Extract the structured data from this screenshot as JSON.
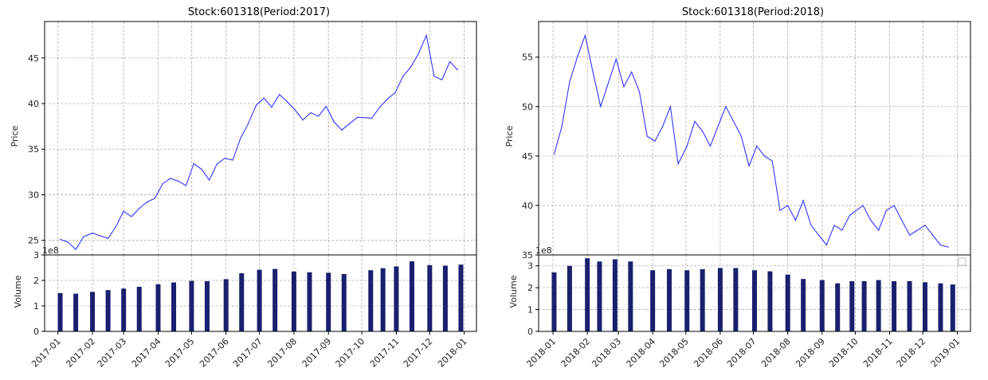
{
  "chart_data": [
    {
      "type": "line",
      "title": "Stock:601318(Period:2017)",
      "ylabel": "Price",
      "ylim": [
        23.4,
        49.0
      ],
      "yticks": [
        25,
        30,
        35,
        40,
        45
      ],
      "xlim": [
        "2016-12-20",
        "2018-01-12"
      ],
      "grid": true,
      "series": [
        {
          "color": "#3333ff",
          "x": [
            "2017-01-03",
            "2017-01-10",
            "2017-01-17",
            "2017-01-24",
            "2017-02-01",
            "2017-02-08",
            "2017-02-15",
            "2017-02-22",
            "2017-03-01",
            "2017-03-08",
            "2017-03-15",
            "2017-03-22",
            "2017-03-29",
            "2017-04-05",
            "2017-04-12",
            "2017-04-19",
            "2017-04-26",
            "2017-05-03",
            "2017-05-10",
            "2017-05-17",
            "2017-05-24",
            "2017-05-31",
            "2017-06-07",
            "2017-06-14",
            "2017-06-21",
            "2017-06-28",
            "2017-07-05",
            "2017-07-12",
            "2017-07-19",
            "2017-07-26",
            "2017-08-02",
            "2017-08-09",
            "2017-08-16",
            "2017-08-23",
            "2017-08-30",
            "2017-09-06",
            "2017-09-13",
            "2017-09-20",
            "2017-09-27",
            "2017-10-10",
            "2017-10-17",
            "2017-10-24",
            "2017-10-31",
            "2017-11-07",
            "2017-11-14",
            "2017-11-21",
            "2017-11-28",
            "2017-12-05",
            "2017-12-12",
            "2017-12-19",
            "2017-12-26"
          ],
          "values": [
            25.1,
            24.8,
            24.0,
            25.4,
            25.8,
            25.5,
            25.2,
            26.5,
            28.2,
            27.6,
            28.5,
            29.2,
            29.6,
            31.2,
            31.8,
            31.5,
            31.0,
            33.4,
            32.8,
            31.6,
            33.4,
            34.0,
            33.8,
            36.2,
            37.8,
            39.8,
            40.6,
            39.6,
            41.0,
            40.2,
            39.3,
            38.2,
            39.0,
            38.6,
            39.7,
            38.0,
            37.1,
            37.8,
            38.5,
            38.4,
            39.6,
            40.5,
            41.2,
            43.0,
            44.0,
            45.5,
            47.5,
            43.0,
            42.6,
            44.6,
            43.7
          ]
        }
      ]
    },
    {
      "type": "bar",
      "ylabel": "Volume",
      "y_offset_label": "1e8",
      "ylim": [
        0,
        3
      ],
      "yticks": [
        0,
        1,
        2,
        3
      ],
      "xlim": [
        "2016-12-20",
        "2018-01-12"
      ],
      "xticks": [
        "2017-01",
        "2017-02",
        "2017-03",
        "2017-04",
        "2017-05",
        "2017-06",
        "2017-07",
        "2017-08",
        "2017-09",
        "2017-10",
        "2017-11",
        "2017-12",
        "2018-01"
      ],
      "bar_color": "#1a1f6e",
      "grid": true,
      "series": [
        {
          "x": [
            "2017-01-03",
            "2017-01-17",
            "2017-02-01",
            "2017-02-15",
            "2017-03-01",
            "2017-03-15",
            "2017-04-01",
            "2017-04-15",
            "2017-05-01",
            "2017-05-15",
            "2017-06-01",
            "2017-06-15",
            "2017-07-01",
            "2017-07-15",
            "2017-08-01",
            "2017-08-15",
            "2017-09-01",
            "2017-09-15",
            "2017-10-09",
            "2017-10-20",
            "2017-11-01",
            "2017-11-15",
            "2017-12-01",
            "2017-12-15",
            "2017-12-29"
          ],
          "values": [
            1.5,
            1.48,
            1.55,
            1.62,
            1.68,
            1.75,
            1.85,
            1.92,
            1.98,
            1.97,
            2.05,
            2.28,
            2.42,
            2.45,
            2.35,
            2.32,
            2.3,
            2.25,
            2.4,
            2.48,
            2.55,
            2.75,
            2.6,
            2.58,
            2.62
          ]
        }
      ]
    },
    {
      "type": "line",
      "title": "Stock:601318(Period:2018)",
      "ylabel": "Price",
      "ylim": [
        35.0,
        58.6
      ],
      "yticks": [
        35,
        40,
        45,
        50,
        55
      ],
      "xlim": [
        "2017-12-19",
        "2019-01-13"
      ],
      "grid": true,
      "series": [
        {
          "color": "#3333ff",
          "x": [
            "2018-01-02",
            "2018-01-09",
            "2018-01-16",
            "2018-01-23",
            "2018-01-30",
            "2018-02-06",
            "2018-02-13",
            "2018-02-27",
            "2018-03-06",
            "2018-03-13",
            "2018-03-20",
            "2018-03-27",
            "2018-04-03",
            "2018-04-10",
            "2018-04-17",
            "2018-04-24",
            "2018-05-02",
            "2018-05-09",
            "2018-05-16",
            "2018-05-23",
            "2018-05-30",
            "2018-06-06",
            "2018-06-13",
            "2018-06-20",
            "2018-06-27",
            "2018-07-04",
            "2018-07-11",
            "2018-07-18",
            "2018-07-25",
            "2018-08-01",
            "2018-08-08",
            "2018-08-15",
            "2018-08-22",
            "2018-08-29",
            "2018-09-05",
            "2018-09-12",
            "2018-09-19",
            "2018-09-26",
            "2018-10-08",
            "2018-10-15",
            "2018-10-22",
            "2018-10-29",
            "2018-11-05",
            "2018-11-12",
            "2018-11-19",
            "2018-11-26",
            "2018-12-03",
            "2018-12-10",
            "2018-12-17",
            "2018-12-24"
          ],
          "values": [
            45.2,
            48.0,
            52.5,
            55.0,
            57.2,
            53.5,
            50.0,
            54.8,
            52.0,
            53.5,
            51.5,
            47.0,
            46.5,
            48.0,
            50.0,
            44.2,
            46.0,
            48.5,
            47.5,
            46.0,
            48.0,
            50.0,
            48.5,
            47.0,
            44.0,
            46.0,
            45.0,
            44.5,
            39.5,
            40.0,
            38.5,
            40.5,
            38.0,
            37.0,
            36.0,
            38.0,
            37.5,
            39.0,
            40.0,
            38.5,
            37.5,
            39.5,
            40.0,
            38.5,
            37.0,
            37.5,
            38.0,
            37.0,
            36.0,
            35.8
          ]
        }
      ]
    },
    {
      "type": "bar",
      "ylabel": "Volume",
      "y_offset_label": "1e8",
      "ylim": [
        0,
        3.5
      ],
      "yticks": [
        0,
        1,
        2,
        3
      ],
      "xlim": [
        "2017-12-19",
        "2019-01-13"
      ],
      "xticks": [
        "2018-01",
        "2018-02",
        "2018-03",
        "2018-04",
        "2018-05",
        "2018-06",
        "2018-07",
        "2018-08",
        "2018-09",
        "2018-10",
        "2018-11",
        "2018-12",
        "2019-01"
      ],
      "bar_color": "#1a1f6e",
      "grid": true,
      "series": [
        {
          "x": [
            "2018-01-02",
            "2018-01-16",
            "2018-02-01",
            "2018-02-12",
            "2018-02-26",
            "2018-03-12",
            "2018-04-01",
            "2018-04-16",
            "2018-05-02",
            "2018-05-16",
            "2018-06-01",
            "2018-06-15",
            "2018-07-02",
            "2018-07-16",
            "2018-08-01",
            "2018-08-15",
            "2018-09-01",
            "2018-09-15",
            "2018-09-28",
            "2018-10-09",
            "2018-10-22",
            "2018-11-05",
            "2018-11-19",
            "2018-12-03",
            "2018-12-17",
            "2018-12-28"
          ],
          "values": [
            2.7,
            3.0,
            3.35,
            3.2,
            3.3,
            3.2,
            2.8,
            2.85,
            2.8,
            2.85,
            2.9,
            2.9,
            2.8,
            2.75,
            2.6,
            2.4,
            2.35,
            2.2,
            2.3,
            2.3,
            2.35,
            2.3,
            2.3,
            2.25,
            2.2,
            2.15
          ]
        }
      ]
    }
  ]
}
